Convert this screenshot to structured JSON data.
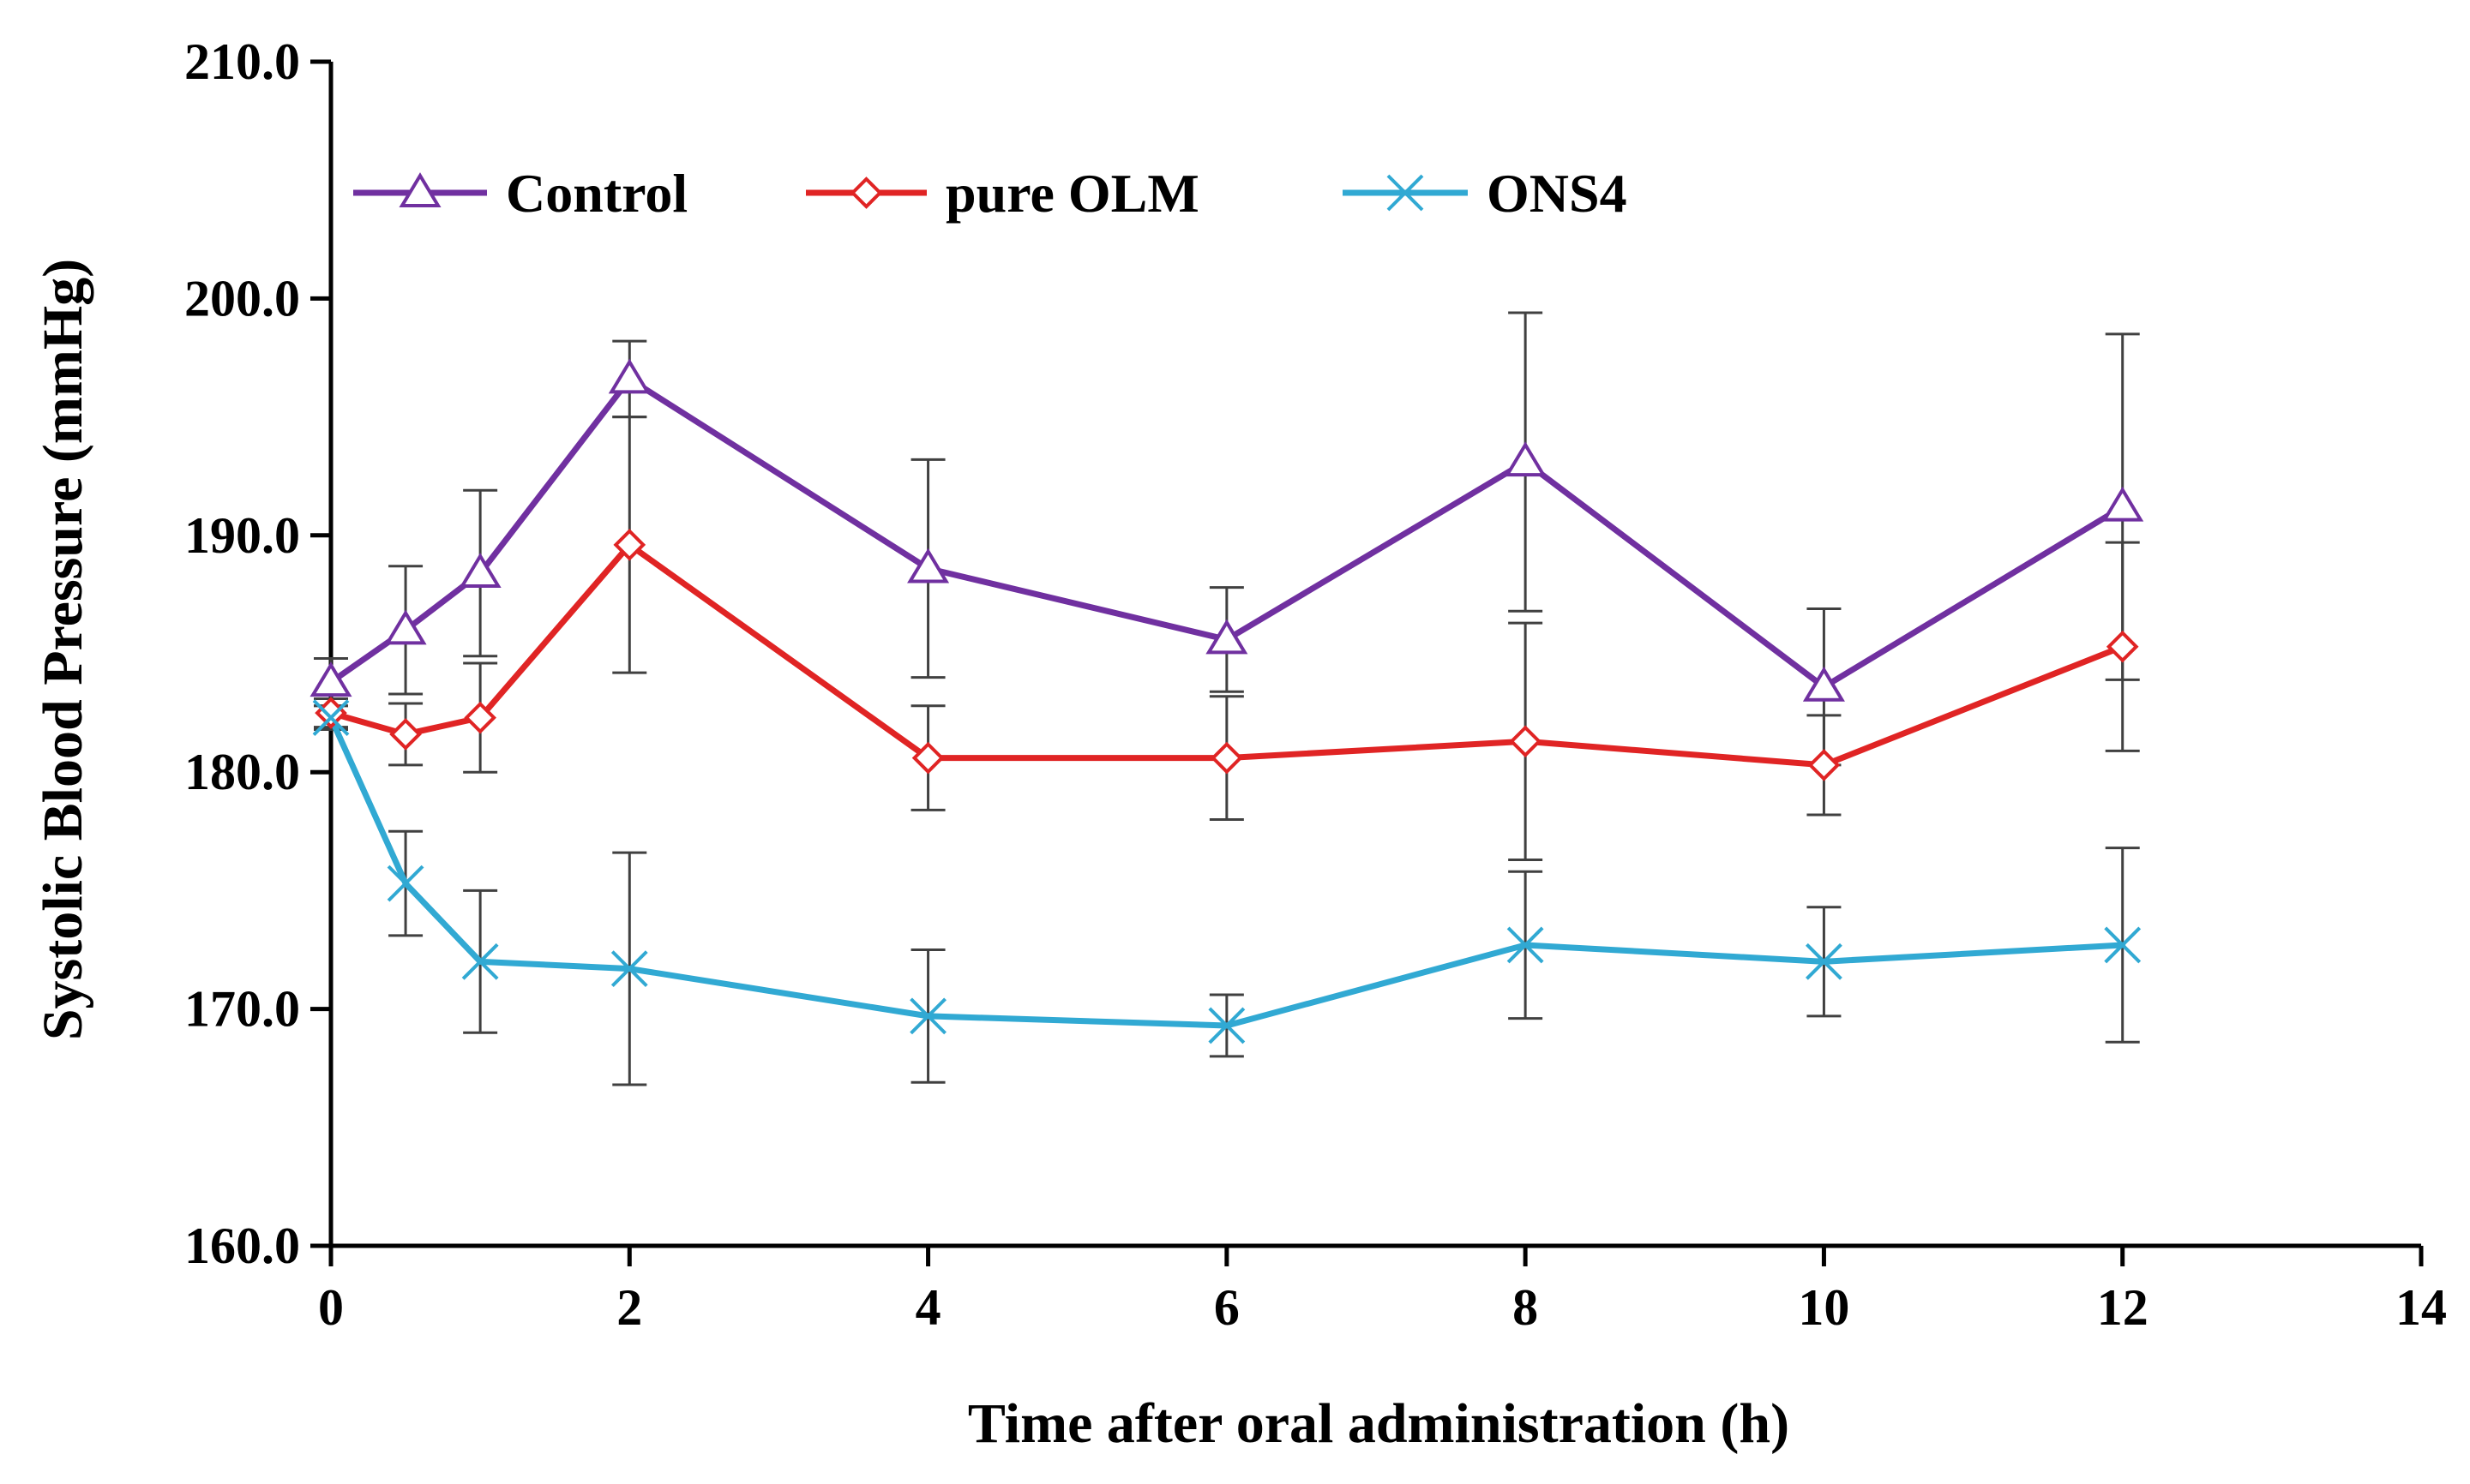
{
  "chart_data": {
    "type": "line",
    "title": "",
    "xlabel": "Time after oral administration (h)",
    "ylabel": "Systolic Blood Pressure (mmHg)",
    "xlim": [
      0,
      14
    ],
    "ylim": [
      160,
      210
    ],
    "x_ticks": [
      "0",
      "2",
      "4",
      "6",
      "8",
      "10",
      "12",
      "14"
    ],
    "x_tick_values": [
      0,
      2,
      4,
      6,
      8,
      10,
      12,
      14
    ],
    "y_ticks": [
      "160.0",
      "170.0",
      "180.0",
      "190.0",
      "200.0",
      "210.0"
    ],
    "y_tick_values": [
      160,
      170,
      180,
      190,
      200,
      210
    ],
    "grid": false,
    "legend_position": "top-left",
    "x": [
      0,
      0.5,
      1,
      2,
      4,
      6,
      8,
      10,
      12
    ],
    "series": [
      {
        "name": "Control",
        "color": "#7030A0",
        "marker": "triangle",
        "values": [
          183.8,
          186.0,
          188.4,
          196.6,
          188.6,
          185.6,
          193.1,
          183.6,
          191.2
        ],
        "errors": [
          1.0,
          2.7,
          3.5,
          1.6,
          4.6,
          2.2,
          6.3,
          3.3,
          7.3
        ]
      },
      {
        "name": "pure OLM",
        "color": "#E02424",
        "marker": "diamond",
        "values": [
          182.5,
          181.6,
          182.3,
          189.6,
          180.6,
          180.6,
          181.3,
          180.3,
          185.3
        ],
        "errors": [
          0.6,
          1.3,
          2.3,
          5.4,
          2.2,
          2.6,
          5.0,
          2.1,
          4.4
        ]
      },
      {
        "name": "ONS4",
        "color": "#31A9D3",
        "marker": "x",
        "values": [
          182.3,
          175.3,
          172.0,
          171.7,
          169.7,
          169.3,
          172.7,
          172.0,
          172.7
        ],
        "errors": [
          0.5,
          2.2,
          3.0,
          4.9,
          2.8,
          1.3,
          3.1,
          2.3,
          4.1
        ]
      }
    ]
  }
}
